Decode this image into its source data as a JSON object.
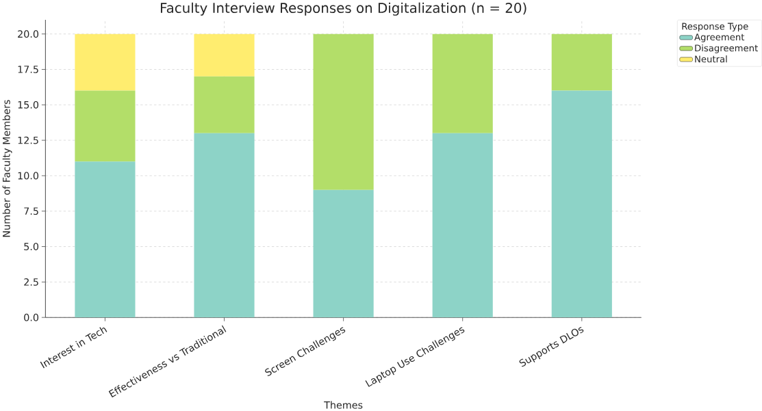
{
  "chart_data": {
    "type": "bar",
    "title": "Faculty Interview Responses on Digitalization (n = 20)",
    "xlabel": "Themes",
    "ylabel": "Number of Faculty Members",
    "legend_title": "Response Type",
    "categories": [
      "Interest in Tech",
      "Effectiveness vs Traditional",
      "Screen Challenges",
      "Laptop Use Challenges",
      "Supports DLOs"
    ],
    "series": [
      {
        "name": "Agreement",
        "color": "#8dd3c7",
        "values": [
          11,
          13,
          9,
          13,
          16
        ]
      },
      {
        "name": "Disagreement",
        "color": "#b3de69",
        "values": [
          5,
          4,
          11,
          7,
          4
        ]
      },
      {
        "name": "Neutral",
        "color": "#ffed6f",
        "values": [
          4,
          3,
          0,
          0,
          0
        ]
      }
    ],
    "stacked": true,
    "ylim": [
      0,
      21
    ],
    "yticks": [
      {
        "value": 0,
        "label": "0.0"
      },
      {
        "value": 2.5,
        "label": "2.5"
      },
      {
        "value": 5,
        "label": "5.0"
      },
      {
        "value": 7.5,
        "label": "7.5"
      },
      {
        "value": 10,
        "label": "10.0"
      },
      {
        "value": 12.5,
        "label": "12.5"
      },
      {
        "value": 15,
        "label": "15.0"
      },
      {
        "value": 17.5,
        "label": "17.5"
      },
      {
        "value": 20,
        "label": "20.0"
      }
    ],
    "grid": true,
    "legend": "top right"
  }
}
